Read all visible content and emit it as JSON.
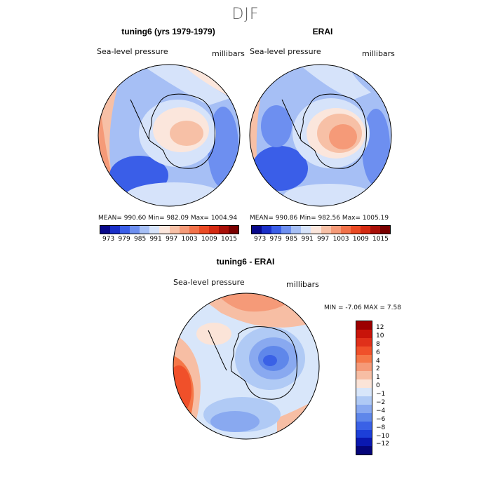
{
  "suptitle": "DJF",
  "panels": [
    {
      "title": "tuning6 (yrs 1979-1979)",
      "variable": "Sea-level pressure",
      "units": "millibars",
      "stats": {
        "mean": "990.60",
        "min": "982.09",
        "max": "1004.94"
      },
      "stats_text": "MEAN= 990.60   Min= 982.09   Max= 1004.94"
    },
    {
      "title": "ERAI",
      "variable": "Sea-level pressure",
      "units": "millibars",
      "stats": {
        "mean": "990.86",
        "min": "982.56",
        "max": "1005.19"
      },
      "stats_text": "MEAN= 990.86   Min= 982.56   Max= 1005.19"
    },
    {
      "title": "tuning6 - ERAI",
      "variable": "Sea-level pressure",
      "units": "millibars",
      "stats": {
        "min": "-7.06",
        "max": "7.58"
      },
      "stats_text": "MIN =   -7.06  MAX =    7.58"
    }
  ],
  "colorbar_abs": {
    "tick_labels": [
      "973",
      "979",
      "985",
      "991",
      "997",
      "1003",
      "1009",
      "1015"
    ],
    "colors": [
      "#08088a",
      "#1a2fc8",
      "#3a5ee8",
      "#6d8ff0",
      "#a6bff5",
      "#d6e3fa",
      "#fbe6dc",
      "#f7c0a6",
      "#f59a78",
      "#f2724a",
      "#ea4a24",
      "#d42a12",
      "#a80f08",
      "#7a0000"
    ]
  },
  "colorbar_diff": {
    "tick_labels": [
      "12",
      "10",
      "8",
      "6",
      "4",
      "2",
      "1",
      "0",
      "−1",
      "−2",
      "−4",
      "−6",
      "−8",
      "−10",
      "−12"
    ],
    "colors": [
      "#9c0000",
      "#c8140a",
      "#e0301a",
      "#f0502a",
      "#f57748",
      "#f59a78",
      "#f7bea4",
      "#fbe4d8",
      "#d8e6fa",
      "#b0caf5",
      "#89a9f0",
      "#5f87ea",
      "#3a61e6",
      "#1c3fd8",
      "#0a18b0",
      "#05057a"
    ]
  }
}
